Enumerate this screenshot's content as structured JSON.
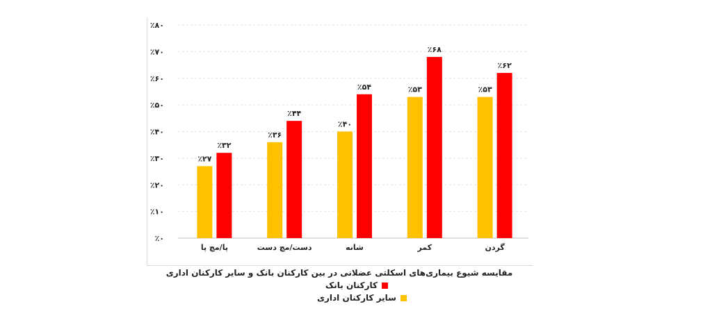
{
  "chart_data": {
    "type": "bar",
    "title": "مقایسه شیوع بیماری‌های اسکلتی عضلانی در بین کارکنان بانک و سایر کارکنان اداری",
    "categories": [
      "پا/مچ پا",
      "دست/مچ دست",
      "شانه",
      "کمر",
      "گردن"
    ],
    "series": [
      {
        "name": "سایر کارکنان اداری",
        "color": "#FFC000",
        "values": [
          27,
          36,
          40,
          53,
          53
        ],
        "labels": [
          "٪۲۷",
          "٪۳۶",
          "٪۴۰",
          "٪۵۳",
          "٪۵۳"
        ]
      },
      {
        "name": "کارکنان بانک",
        "color": "#FF0000",
        "values": [
          32,
          44,
          54,
          68,
          62
        ],
        "labels": [
          "٪۳۲",
          "٪۴۴",
          "٪۵۴",
          "٪۶۸",
          "٪۶۲"
        ]
      }
    ],
    "ylim": [
      0,
      80
    ],
    "yticks": [
      0,
      10,
      20,
      30,
      40,
      50,
      60,
      70,
      80
    ],
    "ytick_labels": [
      "٪۰",
      "٪۱۰",
      "٪۲۰",
      "٪۳۰",
      "٪۴۰",
      "٪۵۰",
      "٪۶۰",
      "٪۷۰",
      "٪۸۰"
    ],
    "grid": "dotted horizontal",
    "legend": "bottom"
  },
  "legend": {
    "bank_label": "کارکنان بانک",
    "office_label": "سایر کارکنان اداری"
  }
}
